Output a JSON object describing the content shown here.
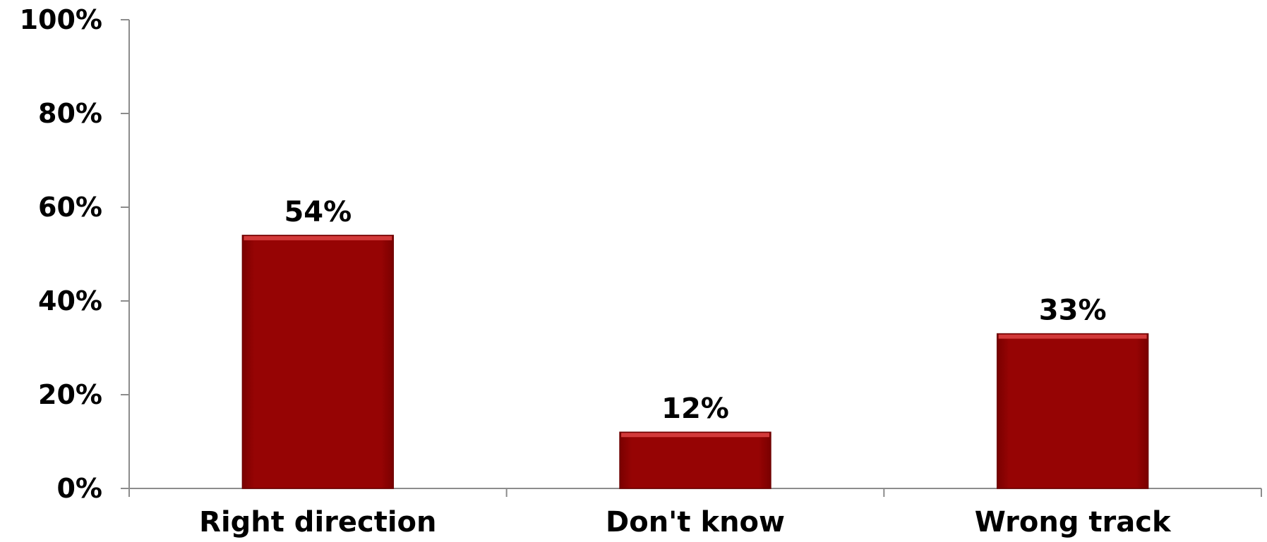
{
  "chart_data": {
    "type": "bar",
    "title": "",
    "xlabel": "",
    "ylabel": "",
    "categories": [
      "Right direction",
      "Don't know",
      "Wrong track"
    ],
    "values": [
      54,
      12,
      33
    ],
    "value_labels": [
      "54%",
      "12%",
      "33%"
    ],
    "ylim": [
      0,
      100
    ],
    "yticks": [
      0,
      20,
      40,
      60,
      80,
      100
    ],
    "ytick_labels": [
      "0%",
      "20%",
      "40%",
      "60%",
      "80%",
      "100%"
    ],
    "grid": false,
    "legend": "none",
    "colors": {
      "bar": "#960404",
      "bar_highlight": "#d23a3a",
      "bar_edge": "#6e0000",
      "axis": "#8c8c8c",
      "text": "#000000"
    }
  }
}
